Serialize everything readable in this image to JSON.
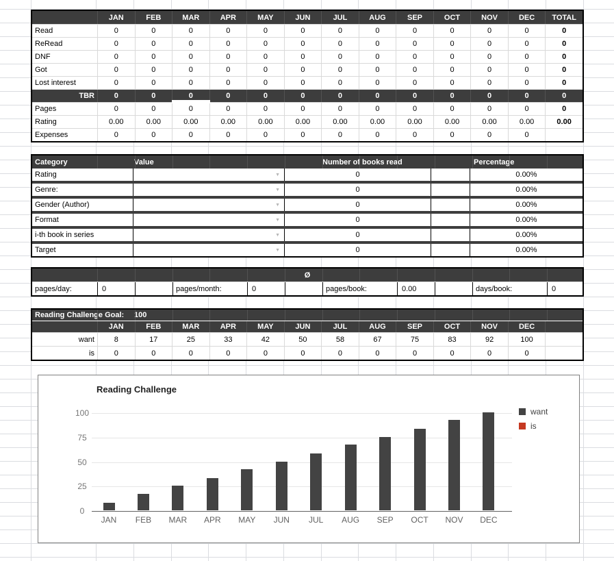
{
  "palette": {
    "header_dark": "#3d3d3d",
    "gridline": "#dadce0",
    "want_color": "#434343",
    "is_color": "#c53922"
  },
  "icons": {
    "dropdown": "▼"
  },
  "monthly_table": {
    "columns": [
      "JAN",
      "FEB",
      "MAR",
      "APR",
      "MAY",
      "JUN",
      "JUL",
      "AUG",
      "SEP",
      "OCT",
      "NOV",
      "DEC",
      "TOTAL"
    ],
    "rows": [
      {
        "label": "Read",
        "dark": false,
        "values": [
          "0",
          "0",
          "0",
          "0",
          "0",
          "0",
          "0",
          "0",
          "0",
          "0",
          "0",
          "0"
        ],
        "total": "0"
      },
      {
        "label": "ReRead",
        "dark": false,
        "values": [
          "0",
          "0",
          "0",
          "0",
          "0",
          "0",
          "0",
          "0",
          "0",
          "0",
          "0",
          "0"
        ],
        "total": "0"
      },
      {
        "label": "DNF",
        "dark": false,
        "values": [
          "0",
          "0",
          "0",
          "0",
          "0",
          "0",
          "0",
          "0",
          "0",
          "0",
          "0",
          "0"
        ],
        "total": "0"
      },
      {
        "label": "Got",
        "dark": false,
        "values": [
          "0",
          "0",
          "0",
          "0",
          "0",
          "0",
          "0",
          "0",
          "0",
          "0",
          "0",
          "0"
        ],
        "total": "0"
      },
      {
        "label": "Lost interest",
        "dark": false,
        "values": [
          "0",
          "0",
          "0",
          "0",
          "0",
          "0",
          "0",
          "0",
          "0",
          "0",
          "0",
          "0"
        ],
        "total": "0"
      },
      {
        "label": "TBR",
        "dark": true,
        "values": [
          "0",
          "0",
          "0",
          "0",
          "0",
          "0",
          "0",
          "0",
          "0",
          "0",
          "0",
          "0"
        ],
        "total": "0"
      },
      {
        "label": "Pages",
        "dark": false,
        "values": [
          "0",
          "0",
          "0",
          "0",
          "0",
          "0",
          "0",
          "0",
          "0",
          "0",
          "0",
          "0"
        ],
        "total": "0"
      },
      {
        "label": "Rating",
        "dark": false,
        "values": [
          "0.00",
          "0.00",
          "0.00",
          "0.00",
          "0.00",
          "0.00",
          "0.00",
          "0.00",
          "0.00",
          "0.00",
          "0.00",
          "0.00"
        ],
        "total": "0.00"
      },
      {
        "label": "Expenses",
        "dark": false,
        "values": [
          "0",
          "0",
          "0",
          "0",
          "0",
          "0",
          "0",
          "0",
          "0",
          "0",
          "0",
          "0"
        ],
        "total": ""
      }
    ]
  },
  "category_table": {
    "headers": {
      "category": "Category",
      "value": "Value",
      "count": "Number of books read",
      "percentage": "Percentage"
    },
    "rows": [
      {
        "label": "Rating",
        "value": "",
        "count": "0",
        "percentage": "0.00%"
      },
      {
        "label": "Genre:",
        "value": "",
        "count": "0",
        "percentage": "0.00%"
      },
      {
        "label": "Gender (Author)",
        "value": "",
        "count": "0",
        "percentage": "0.00%"
      },
      {
        "label": "Format",
        "value": "",
        "count": "0",
        "percentage": "0.00%"
      },
      {
        "label": "i-th book in series",
        "value": "",
        "count": "0",
        "percentage": "0.00%"
      },
      {
        "label": "Target",
        "value": "",
        "count": "0",
        "percentage": "0.00%"
      }
    ]
  },
  "averages": {
    "title": "Ø",
    "items": [
      {
        "label": "pages/day:",
        "value": "0"
      },
      {
        "label": "pages/month:",
        "value": "0"
      },
      {
        "label": "pages/book:",
        "value": "0.00"
      },
      {
        "label": "days/book:",
        "value": "0"
      }
    ]
  },
  "challenge": {
    "goal_label": "Reading Challenge Goal:",
    "goal": "100",
    "months": [
      "JAN",
      "FEB",
      "MAR",
      "APR",
      "MAY",
      "JUN",
      "JUL",
      "AUG",
      "SEP",
      "OCT",
      "NOV",
      "DEC"
    ],
    "rows": [
      {
        "label": "want",
        "values": [
          8,
          17,
          25,
          33,
          42,
          50,
          58,
          67,
          75,
          83,
          92,
          100
        ]
      },
      {
        "label": "is",
        "values": [
          0,
          0,
          0,
          0,
          0,
          0,
          0,
          0,
          0,
          0,
          0,
          0
        ]
      }
    ]
  },
  "chart_data": {
    "type": "bar",
    "title": "Reading Challenge",
    "categories": [
      "JAN",
      "FEB",
      "MAR",
      "APR",
      "MAY",
      "JUN",
      "JUL",
      "AUG",
      "SEP",
      "OCT",
      "NOV",
      "DEC"
    ],
    "series": [
      {
        "name": "want",
        "color": "#434343",
        "values": [
          8,
          17,
          25,
          33,
          42,
          50,
          58,
          67,
          75,
          83,
          92,
          100
        ]
      },
      {
        "name": "is",
        "color": "#c53922",
        "values": [
          0,
          0,
          0,
          0,
          0,
          0,
          0,
          0,
          0,
          0,
          0,
          0
        ]
      }
    ],
    "xlabel": "",
    "ylabel": "",
    "ylim": [
      0,
      100
    ],
    "yticks": [
      0,
      25,
      50,
      75,
      100
    ],
    "grid": true,
    "legend_position": "right"
  }
}
